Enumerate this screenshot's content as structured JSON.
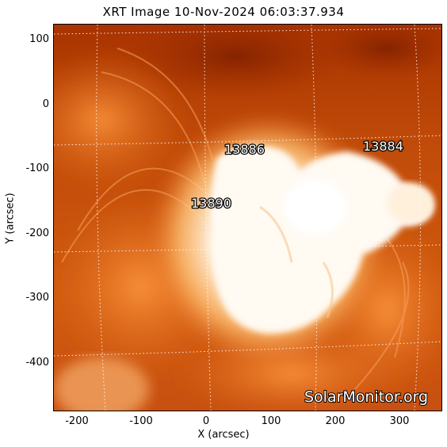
{
  "title": "XRT Image  10-Nov-2024 06:03:37.934",
  "x_axis": {
    "label": "X (arcsec)",
    "ticks": [
      "-200",
      "-100",
      "0",
      "100",
      "200",
      "300"
    ]
  },
  "y_axis": {
    "label": "Y (arcsec)",
    "ticks": [
      "100",
      "0",
      "-100",
      "-200",
      "-300",
      "-400"
    ]
  },
  "regions": [
    {
      "number": "13886"
    },
    {
      "number": "13884"
    },
    {
      "number": "13890"
    }
  ],
  "watermark": "SolarMonitor.org",
  "colors": {
    "background": "#b03a00",
    "bright": "#ffffff",
    "mid": "#f08a30"
  }
}
